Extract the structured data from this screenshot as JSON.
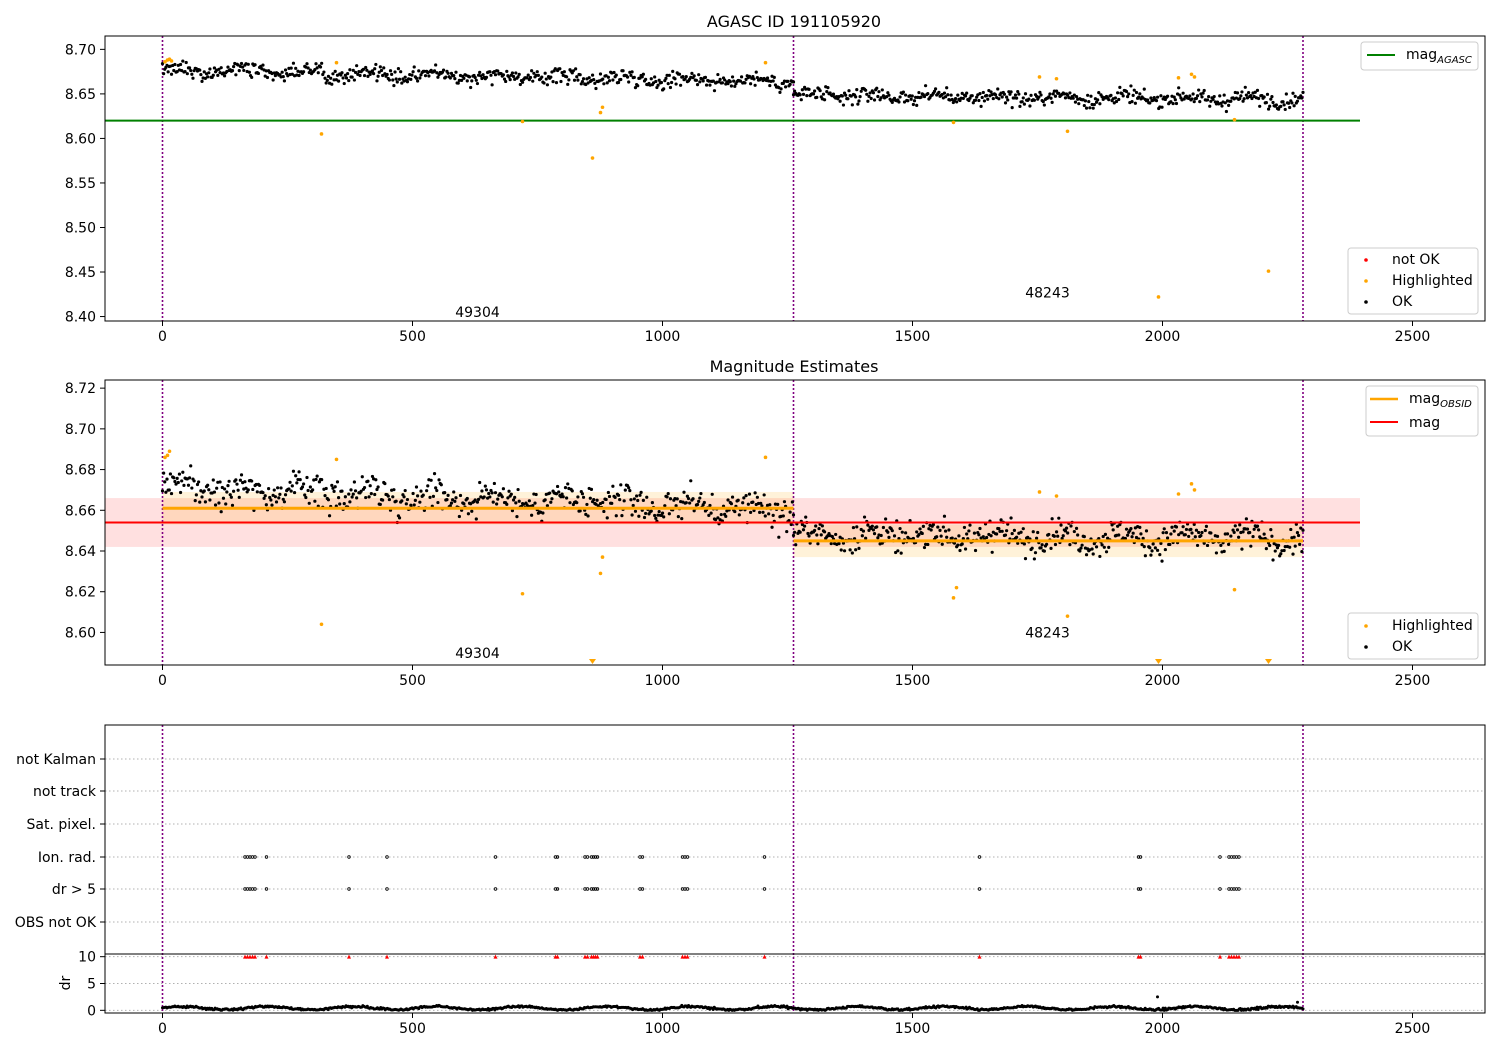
{
  "chart_data": [
    {
      "type": "scatter",
      "title": "AGASC ID 191105920",
      "xlim": [
        -115,
        2645
      ],
      "ylim": [
        8.395,
        8.715
      ],
      "x_ticks": [
        0,
        500,
        1000,
        1500,
        2000,
        2500
      ],
      "y_ticks": [
        8.4,
        8.45,
        8.5,
        8.55,
        8.6,
        8.65,
        8.7
      ],
      "y_tick_labels": [
        "8.40",
        "8.45",
        "8.50",
        "8.55",
        "8.60",
        "8.65",
        "8.70"
      ],
      "x_tick_labels": [
        "0",
        "500",
        "1000",
        "1500",
        "2000",
        "2500"
      ],
      "obs_boundaries": [
        0,
        1262,
        2281
      ],
      "obs_labels": [
        {
          "x": 630,
          "y": 8.405,
          "label": "49304"
        },
        {
          "x": 1770,
          "y": 8.427,
          "label": "48243"
        }
      ],
      "reference_line": {
        "name": "mag_AGASC",
        "y": 8.62,
        "x": [
          -115,
          2395
        ],
        "color": "#008000"
      },
      "series": [
        {
          "name": "OK",
          "color": "#000000",
          "segments": [
            {
              "x": [
                0,
                1262
              ],
              "mean_start": 8.677,
              "mean_end": 8.664,
              "spread": 0.012,
              "n": 560
            },
            {
              "x": [
                1262,
                2281
              ],
              "mean_start": 8.648,
              "mean_end": 8.644,
              "spread": 0.012,
              "n": 460
            }
          ]
        },
        {
          "name": "Highlighted",
          "color": "#ffa500",
          "points": [
            [
              5,
              8.686
            ],
            [
              10,
              8.688
            ],
            [
              14,
              8.689
            ],
            [
              18,
              8.687
            ],
            [
              318,
              8.605
            ],
            [
              348,
              8.685
            ],
            [
              720,
              8.619
            ],
            [
              860,
              8.578
            ],
            [
              876,
              8.629
            ],
            [
              880,
              8.635
            ],
            [
              1206,
              8.685
            ],
            [
              1582,
              8.618
            ],
            [
              1754,
              8.669
            ],
            [
              1788,
              8.667
            ],
            [
              1810,
              8.608
            ],
            [
              1992,
              8.422
            ],
            [
              2032,
              8.668
            ],
            [
              2058,
              8.672
            ],
            [
              2064,
              8.669
            ],
            [
              2144,
              8.621
            ],
            [
              2212,
              8.451
            ]
          ]
        },
        {
          "name": "not OK",
          "color": "#ff0000",
          "points": []
        }
      ],
      "legend_top": {
        "entries": [
          "mag_AGASC"
        ],
        "placement": "top-right"
      },
      "legend_bottom": {
        "entries": [
          "not OK",
          "Highlighted",
          "OK"
        ],
        "placement": "bottom-right"
      }
    },
    {
      "type": "scatter",
      "title": "Magnitude Estimates",
      "xlim": [
        -115,
        2645
      ],
      "ylim": [
        8.584,
        8.724
      ],
      "x_ticks": [
        0,
        500,
        1000,
        1500,
        2000,
        2500
      ],
      "y_ticks": [
        8.6,
        8.62,
        8.64,
        8.66,
        8.68,
        8.7,
        8.72
      ],
      "y_tick_labels": [
        "8.60",
        "8.62",
        "8.64",
        "8.66",
        "8.68",
        "8.70",
        "8.72"
      ],
      "x_tick_labels": [
        "0",
        "500",
        "1000",
        "1500",
        "2000",
        "2500"
      ],
      "obs_boundaries": [
        0,
        1262,
        2281
      ],
      "obs_labels": [
        {
          "x": 630,
          "y": 8.59,
          "label": "49304"
        },
        {
          "x": 1770,
          "y": 8.6,
          "label": "48243"
        }
      ],
      "mag": {
        "name": "mag",
        "y": 8.654,
        "band": [
          8.642,
          8.666
        ],
        "x": [
          -115,
          2395
        ],
        "color": "#ff0000"
      },
      "mag_obsid": [
        {
          "x": [
            0,
            1262
          ],
          "y": 8.661,
          "band": [
            8.653,
            8.669
          ],
          "color": "#ffa500"
        },
        {
          "x": [
            1262,
            2281
          ],
          "y": 8.645,
          "band": [
            8.637,
            8.653
          ],
          "color": "#ffa500"
        }
      ],
      "series": [
        {
          "name": "OK",
          "color": "#000000",
          "segments": [
            {
              "x": [
                0,
                1262
              ],
              "mean_start": 8.672,
              "mean_end": 8.66,
              "spread": 0.011,
              "n": 560
            },
            {
              "x": [
                1262,
                2281
              ],
              "mean_start": 8.648,
              "mean_end": 8.646,
              "spread": 0.01,
              "n": 460
            }
          ]
        },
        {
          "name": "Highlighted",
          "color": "#ffa500",
          "points": [
            [
              5,
              8.686
            ],
            [
              10,
              8.687
            ],
            [
              14,
              8.689
            ],
            [
              318,
              8.604
            ],
            [
              348,
              8.685
            ],
            [
              720,
              8.619
            ],
            [
              876,
              8.629
            ],
            [
              880,
              8.637
            ],
            [
              1206,
              8.686
            ],
            [
              1582,
              8.617
            ],
            [
              1588,
              8.622
            ],
            [
              1754,
              8.669
            ],
            [
              1788,
              8.667
            ],
            [
              1810,
              8.608
            ],
            [
              2032,
              8.668
            ],
            [
              2058,
              8.673
            ],
            [
              2064,
              8.67
            ],
            [
              2144,
              8.621
            ]
          ]
        },
        {
          "name": "Highlighted (below axis)",
          "color": "#ffa500",
          "marker": "triangle-down",
          "points": [
            [
              860,
              8.585
            ],
            [
              1992,
              8.585
            ],
            [
              2212,
              8.585
            ]
          ]
        }
      ],
      "legend_top": {
        "entries": [
          "mag_OBSID",
          "mag"
        ],
        "placement": "top-right"
      },
      "legend_bottom": {
        "entries": [
          "Highlighted",
          "OK"
        ],
        "placement": "bottom-right"
      }
    },
    {
      "type": "scatter",
      "title": "",
      "xlim": [
        -115,
        2645
      ],
      "x_ticks": [
        0,
        500,
        1000,
        1500,
        2000,
        2500
      ],
      "x_tick_labels": [
        "0",
        "500",
        "1000",
        "1500",
        "2000",
        "2500"
      ],
      "obs_boundaries": [
        0,
        1262,
        2281
      ],
      "flag_rows": [
        "not Kalman",
        "not track",
        "Sat. pixel.",
        "Ion. rad.",
        "dr > 5",
        "OBS not OK"
      ],
      "flag_events": {
        "Ion. rad.": [
          165,
          170,
          175,
          180,
          185,
          208,
          373,
          449,
          666,
          786,
          790,
          845,
          850,
          858,
          862,
          866,
          870,
          955,
          960,
          1040,
          1045,
          1050,
          1204,
          1634,
          1952,
          1956,
          2115,
          2133,
          2138,
          2143,
          2148,
          2153
        ],
        "dr > 5": [
          165,
          170,
          175,
          180,
          185,
          208,
          373,
          449,
          666,
          786,
          790,
          845,
          850,
          858,
          862,
          866,
          870,
          955,
          960,
          1040,
          1045,
          1050,
          1204,
          1634,
          1952,
          1956,
          2115,
          2133,
          2138,
          2143,
          2148,
          2153
        ]
      },
      "dr_panel": {
        "ylabel": "dr",
        "y_ticks": [
          0,
          5,
          10
        ],
        "y_tick_labels": [
          "0",
          "5",
          "10"
        ],
        "ylim": [
          -0.5,
          10.5
        ],
        "baseline": 0.4,
        "spread": 0.35,
        "outliers": [
          [
            1990,
            2.5
          ],
          [
            2270,
            1.5
          ]
        ],
        "clipped_at_10": [
          165,
          170,
          175,
          180,
          185,
          208,
          373,
          449,
          666,
          786,
          790,
          845,
          850,
          858,
          862,
          866,
          870,
          955,
          960,
          1040,
          1045,
          1050,
          1204,
          1634,
          1952,
          1956,
          2115,
          2133,
          2138,
          2143,
          2148,
          2153
        ]
      }
    }
  ]
}
